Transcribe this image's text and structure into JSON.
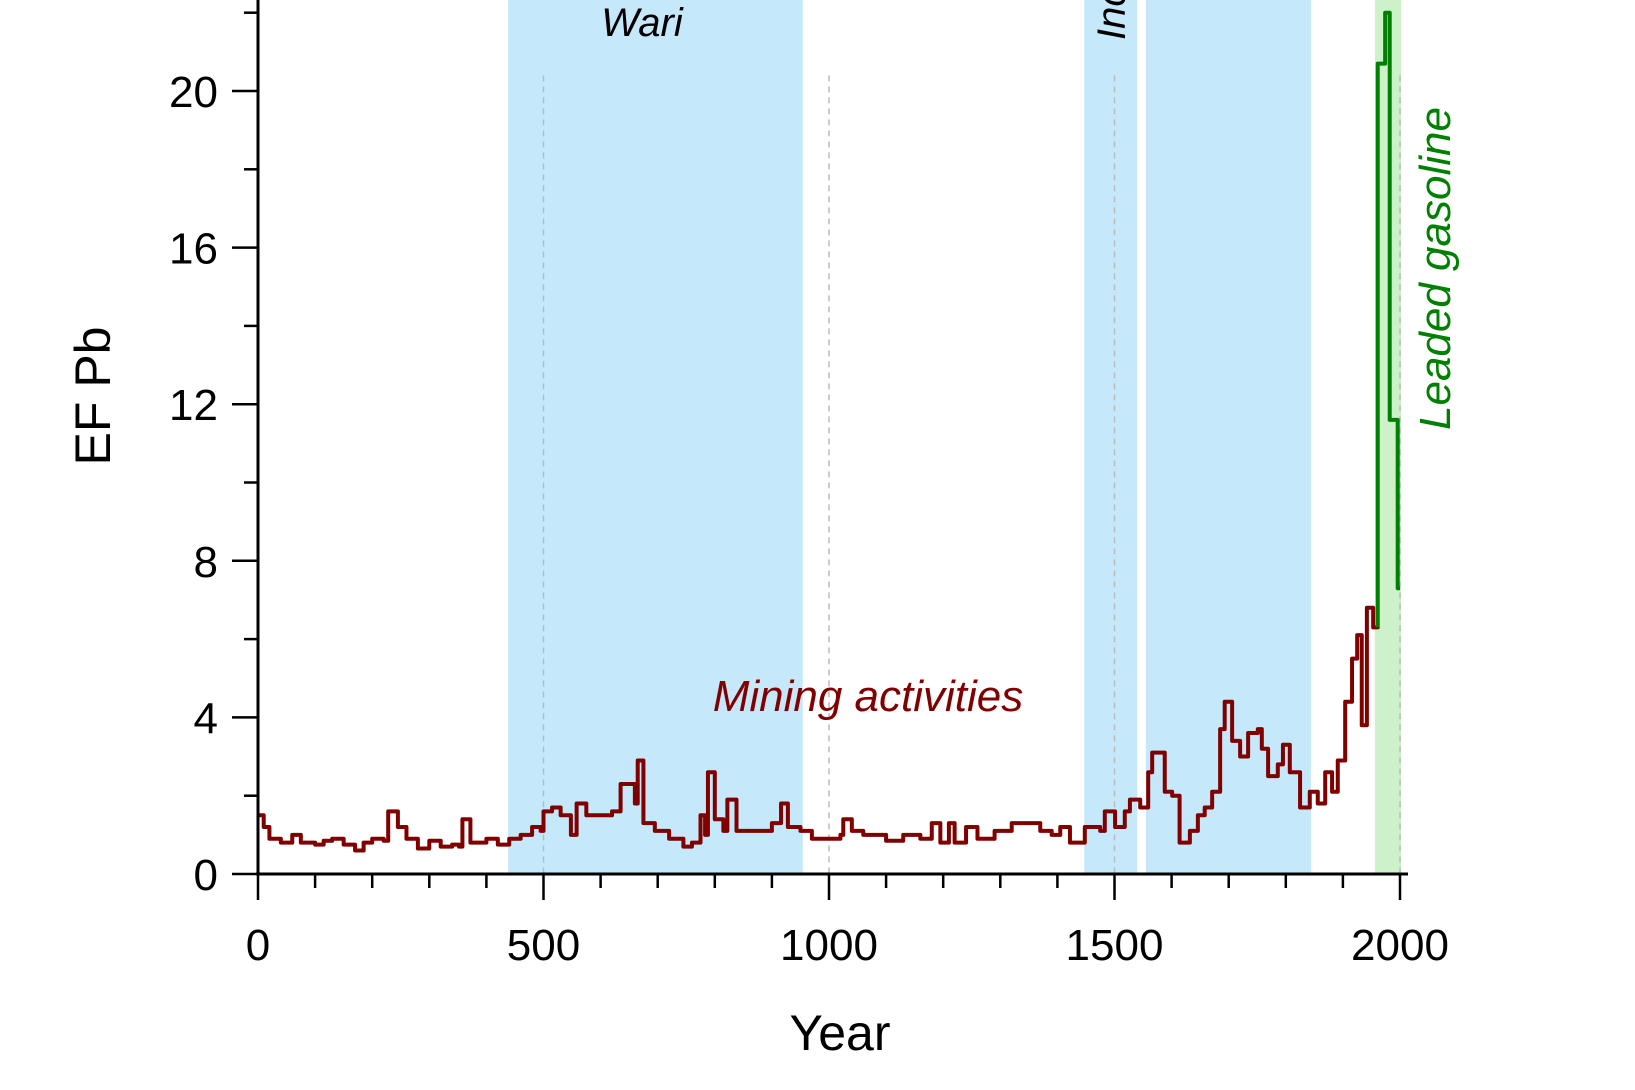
{
  "chart_data": {
    "type": "line",
    "title": "",
    "xlabel": "Year",
    "ylabel": "EF Pb",
    "xlim": [
      0,
      2000
    ],
    "ylim": [
      0,
      22.3
    ],
    "x_ticks": [
      0,
      500,
      1000,
      1500,
      2000
    ],
    "y_ticks": [
      0,
      4,
      8,
      12,
      16,
      20
    ],
    "grid": false,
    "colors": {
      "mining": "#800000",
      "gasoline": "#008000",
      "band_blue": "#c5e9fb",
      "band_green": "#cdf1c8"
    },
    "bands": [
      {
        "name": "Wari",
        "label": "Wari",
        "from": 438,
        "to": 954,
        "color": "#c5e9fb"
      },
      {
        "name": "Inca",
        "label": "Inca",
        "from": 1447,
        "to": 1540,
        "color": "#c5e9fb"
      },
      {
        "name": "colonial",
        "label": "",
        "from": 1555,
        "to": 1844,
        "color": "#c5e9fb"
      },
      {
        "name": "gasoline",
        "label": "",
        "from": 1956,
        "to": 2002,
        "color": "#cdf1c8"
      }
    ],
    "reference_lines": [
      500,
      1000,
      1500,
      2000
    ],
    "annotations": {
      "mining": "Mining activities",
      "gasoline": "Leaded gasoline"
    },
    "series": [
      {
        "name": "Mining activities",
        "color": "#800000",
        "step": true,
        "points": [
          [
            0,
            1.5
          ],
          [
            10,
            1.2
          ],
          [
            20,
            0.9
          ],
          [
            40,
            0.8
          ],
          [
            60,
            1.0
          ],
          [
            75,
            0.8
          ],
          [
            100,
            0.75
          ],
          [
            115,
            0.85
          ],
          [
            130,
            0.9
          ],
          [
            150,
            0.75
          ],
          [
            170,
            0.6
          ],
          [
            185,
            0.8
          ],
          [
            200,
            0.9
          ],
          [
            220,
            0.85
          ],
          [
            228,
            1.6
          ],
          [
            245,
            1.2
          ],
          [
            260,
            0.9
          ],
          [
            280,
            0.65
          ],
          [
            300,
            0.85
          ],
          [
            320,
            0.7
          ],
          [
            340,
            0.75
          ],
          [
            352,
            0.7
          ],
          [
            358,
            1.4
          ],
          [
            372,
            0.8
          ],
          [
            400,
            0.9
          ],
          [
            420,
            0.75
          ],
          [
            440,
            0.9
          ],
          [
            460,
            1.0
          ],
          [
            480,
            1.2
          ],
          [
            495,
            1.1
          ],
          [
            500,
            1.6
          ],
          [
            515,
            1.7
          ],
          [
            530,
            1.5
          ],
          [
            548,
            1.0
          ],
          [
            558,
            1.8
          ],
          [
            575,
            1.5
          ],
          [
            620,
            1.6
          ],
          [
            635,
            2.3
          ],
          [
            660,
            1.8
          ],
          [
            665,
            2.9
          ],
          [
            675,
            1.3
          ],
          [
            695,
            1.1
          ],
          [
            720,
            0.9
          ],
          [
            745,
            0.7
          ],
          [
            760,
            0.8
          ],
          [
            775,
            1.5
          ],
          [
            783,
            1.0
          ],
          [
            788,
            2.6
          ],
          [
            800,
            1.4
          ],
          [
            815,
            1.1
          ],
          [
            822,
            1.9
          ],
          [
            838,
            1.1
          ],
          [
            880,
            1.1
          ],
          [
            900,
            1.3
          ],
          [
            916,
            1.8
          ],
          [
            928,
            1.2
          ],
          [
            950,
            1.1
          ],
          [
            970,
            0.9
          ],
          [
            1000,
            0.9
          ],
          [
            1020,
            1.0
          ],
          [
            1025,
            1.4
          ],
          [
            1040,
            1.1
          ],
          [
            1060,
            1.0
          ],
          [
            1100,
            0.85
          ],
          [
            1130,
            1.0
          ],
          [
            1160,
            0.9
          ],
          [
            1180,
            1.3
          ],
          [
            1195,
            0.8
          ],
          [
            1210,
            1.3
          ],
          [
            1220,
            0.8
          ],
          [
            1240,
            1.2
          ],
          [
            1260,
            0.9
          ],
          [
            1290,
            1.1
          ],
          [
            1320,
            1.3
          ],
          [
            1350,
            1.3
          ],
          [
            1370,
            1.1
          ],
          [
            1390,
            1.0
          ],
          [
            1405,
            1.2
          ],
          [
            1422,
            0.8
          ],
          [
            1448,
            1.2
          ],
          [
            1475,
            1.1
          ],
          [
            1483,
            1.6
          ],
          [
            1501,
            1.2
          ],
          [
            1518,
            1.6
          ],
          [
            1527,
            1.9
          ],
          [
            1545,
            1.7
          ],
          [
            1559,
            2.6
          ],
          [
            1566,
            3.1
          ],
          [
            1588,
            2.1
          ],
          [
            1601,
            2.0
          ],
          [
            1614,
            0.8
          ],
          [
            1632,
            1.1
          ],
          [
            1646,
            1.5
          ],
          [
            1658,
            1.7
          ],
          [
            1671,
            2.1
          ],
          [
            1685,
            3.7
          ],
          [
            1693,
            4.4
          ],
          [
            1706,
            3.4
          ],
          [
            1720,
            3.0
          ],
          [
            1734,
            3.6
          ],
          [
            1751,
            3.7
          ],
          [
            1758,
            3.2
          ],
          [
            1769,
            2.5
          ],
          [
            1786,
            2.8
          ],
          [
            1795,
            3.3
          ],
          [
            1807,
            2.6
          ],
          [
            1825,
            1.7
          ],
          [
            1842,
            2.1
          ],
          [
            1856,
            1.8
          ],
          [
            1869,
            2.6
          ],
          [
            1881,
            2.1
          ],
          [
            1891,
            2.9
          ],
          [
            1904,
            4.4
          ],
          [
            1916,
            5.5
          ],
          [
            1925,
            6.1
          ],
          [
            1933,
            3.8
          ],
          [
            1942,
            6.8
          ],
          [
            1953,
            6.3
          ],
          [
            1961,
            6.3
          ]
        ]
      },
      {
        "name": "Leaded gasoline",
        "color": "#008000",
        "step": true,
        "points": [
          [
            1961,
            6.3
          ],
          [
            1961,
            20.7
          ],
          [
            1974,
            22.0
          ],
          [
            1982,
            11.6
          ],
          [
            1996,
            7.3
          ],
          [
            2000,
            7.3
          ]
        ]
      }
    ]
  }
}
